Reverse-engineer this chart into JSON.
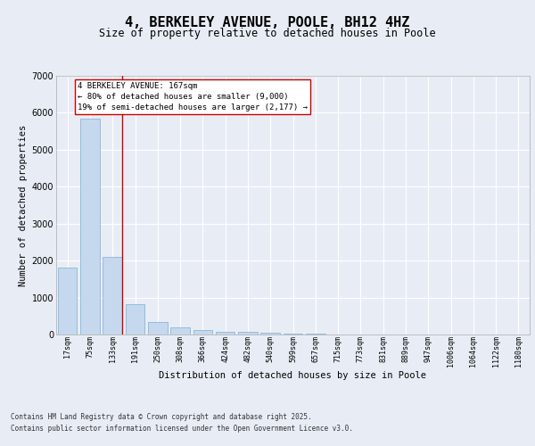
{
  "title": "4, BERKELEY AVENUE, POOLE, BH12 4HZ",
  "subtitle": "Size of property relative to detached houses in Poole",
  "xlabel": "Distribution of detached houses by size in Poole",
  "ylabel": "Number of detached properties",
  "categories": [
    "17sqm",
    "75sqm",
    "133sqm",
    "191sqm",
    "250sqm",
    "308sqm",
    "366sqm",
    "424sqm",
    "482sqm",
    "540sqm",
    "599sqm",
    "657sqm",
    "715sqm",
    "773sqm",
    "831sqm",
    "889sqm",
    "947sqm",
    "1006sqm",
    "1064sqm",
    "1122sqm",
    "1180sqm"
  ],
  "values": [
    1800,
    5850,
    2100,
    830,
    340,
    200,
    120,
    80,
    65,
    55,
    30,
    15,
    10,
    5,
    3,
    2,
    1,
    0,
    0,
    0,
    0
  ],
  "bar_color": "#c5d8ee",
  "bar_edge_color": "#7aafd4",
  "vline_color": "#cc0000",
  "vline_x_index": 2,
  "annotation_text": "4 BERKELEY AVENUE: 167sqm\n← 80% of detached houses are smaller (9,000)\n19% of semi-detached houses are larger (2,177) →",
  "annotation_box_facecolor": "#ffffff",
  "annotation_box_edgecolor": "#cc0000",
  "ylim": [
    0,
    7000
  ],
  "yticks": [
    0,
    1000,
    2000,
    3000,
    4000,
    5000,
    6000,
    7000
  ],
  "bg_color": "#e8edf5",
  "grid_color": "#ffffff",
  "footer_line1": "Contains HM Land Registry data © Crown copyright and database right 2025.",
  "footer_line2": "Contains public sector information licensed under the Open Government Licence v3.0.",
  "title_fontsize": 11,
  "subtitle_fontsize": 8.5,
  "tick_fontsize": 6,
  "ylabel_fontsize": 7.5,
  "xlabel_fontsize": 7.5,
  "annotation_fontsize": 6.5,
  "footer_fontsize": 5.5
}
